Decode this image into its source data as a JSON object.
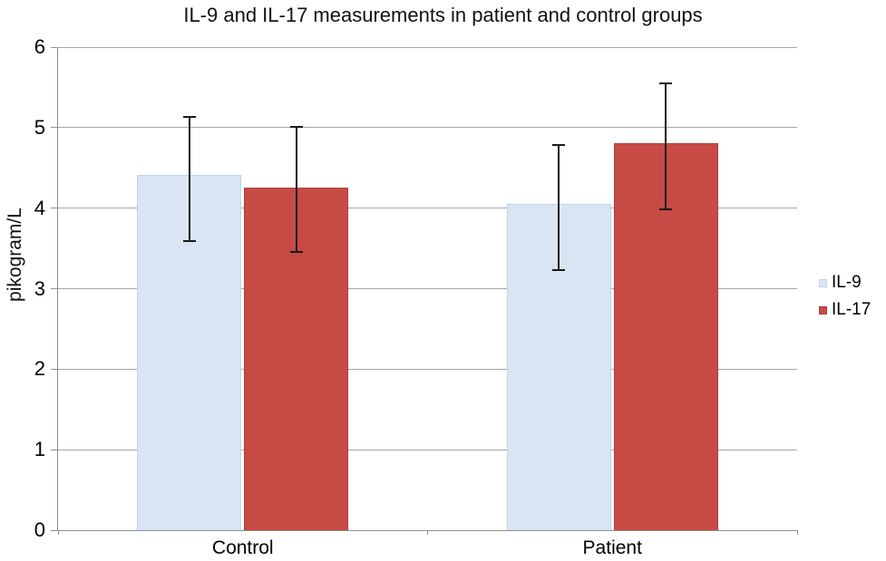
{
  "title": "IL-9 and IL-17 measurements in patient and control groups",
  "chart_data": {
    "type": "bar",
    "title": "IL-9 and IL-17 measurements in patient and control groups",
    "xlabel": "",
    "ylabel": "pikogram/L",
    "ylim": [
      0,
      6
    ],
    "y_ticks": [
      0,
      1,
      2,
      3,
      4,
      5,
      6
    ],
    "grid": true,
    "legend_position": "right",
    "categories": [
      "Control",
      "Patient"
    ],
    "series": [
      {
        "name": "IL-9",
        "color": "#d9e5f3",
        "border_color": "#c2d3ea",
        "values": [
          4.41,
          4.05
        ],
        "error_low": [
          3.58,
          3.22
        ],
        "error_high": [
          5.15,
          4.79
        ]
      },
      {
        "name": "IL-17",
        "color": "#c84a45",
        "border_color": "#ab3e3a",
        "values": [
          4.26,
          4.81
        ],
        "error_low": [
          3.44,
          3.97
        ],
        "error_high": [
          5.02,
          5.56
        ]
      }
    ],
    "error_bar_color": "#1a1a1a",
    "gridline_color": "#a6a6a6",
    "axis_color": "#8f8f8f"
  }
}
